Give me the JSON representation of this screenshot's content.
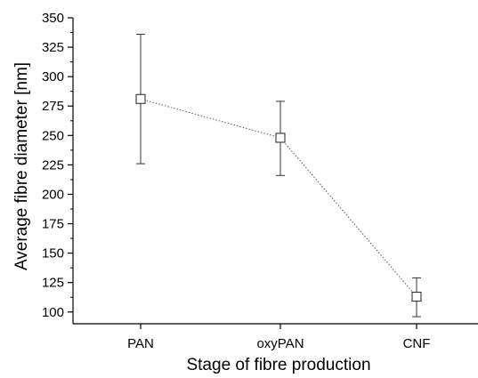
{
  "chart_data": {
    "type": "line",
    "title": "",
    "xlabel": "Stage of fibre production",
    "ylabel": "Average fibre diameter [nm]",
    "categories": [
      "PAN",
      "oxyPAN",
      "CNF"
    ],
    "ylim": [
      90,
      350
    ],
    "yticks": [
      100,
      125,
      150,
      175,
      200,
      225,
      250,
      275,
      300,
      325,
      350
    ],
    "grid": false,
    "legend": "none",
    "series": [
      {
        "values": [
          281,
          248,
          113
        ],
        "error_low": [
          226,
          216,
          96
        ],
        "error_high": [
          336,
          279,
          129
        ],
        "marker": "open-square",
        "line_style": "dotted",
        "color": "#555555"
      }
    ]
  }
}
